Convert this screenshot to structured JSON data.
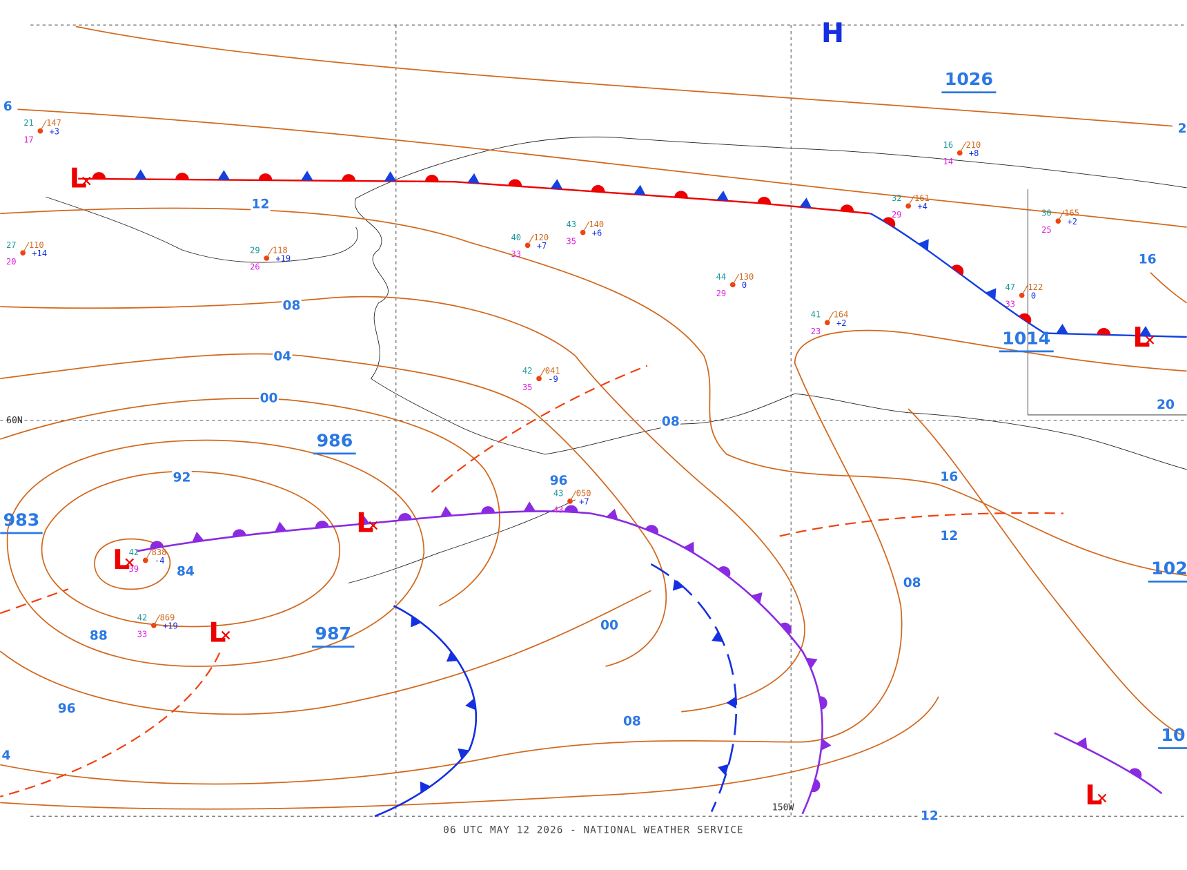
{
  "footer": "06 UTC MAY 12 2026 - NATIONAL WEATHER SERVICE",
  "grid_labels": [
    "60N",
    "150W"
  ],
  "highs": [
    "H"
  ],
  "lows": [
    "L",
    "L",
    "L",
    "L",
    "L",
    "L"
  ],
  "center_pressures": [
    "1026",
    "1014",
    "986",
    "983",
    "987",
    "102",
    "10"
  ],
  "isobar_labels": [
    "6",
    "12",
    "08",
    "04",
    "00",
    "92",
    "84",
    "88",
    "96",
    "4",
    "96",
    "08",
    "00",
    "08",
    "16",
    "12",
    "08",
    "16",
    "20",
    "2",
    "12"
  ],
  "stations": [
    {
      "temp": "21",
      "pressure": "147",
      "dewpoint": "17",
      "tendency": "+3"
    },
    {
      "temp": "27",
      "pressure": "110",
      "dewpoint": "20",
      "tendency": "+14"
    },
    {
      "temp": "29",
      "pressure": "118",
      "dewpoint": "26",
      "tendency": "+19"
    },
    {
      "temp": "43",
      "pressure": "140",
      "dewpoint": "35",
      "tendency": "+6"
    },
    {
      "temp": "40",
      "pressure": "120",
      "dewpoint": "33",
      "tendency": "+7"
    },
    {
      "temp": "32",
      "pressure": "161",
      "dewpoint": "29",
      "tendency": "+4"
    },
    {
      "temp": "16",
      "pressure": "210",
      "dewpoint": "14",
      "tendency": "+8"
    },
    {
      "temp": "42",
      "pressure": "041",
      "dewpoint": "35",
      "tendency": "-9"
    },
    {
      "temp": "30",
      "pressure": "165",
      "dewpoint": "25",
      "tendency": "+2"
    },
    {
      "temp": "47",
      "pressure": "122",
      "dewpoint": "33",
      "tendency": "0"
    },
    {
      "temp": "42",
      "pressure": "838",
      "dewpoint": "39",
      "tendency": "-4"
    },
    {
      "temp": "42",
      "pressure": "869",
      "dewpoint": "33",
      "tendency": "+19"
    },
    {
      "temp": "43",
      "pressure": "050",
      "dewpoint": "43",
      "tendency": "+7"
    },
    {
      "temp": "41",
      "pressure": "164",
      "dewpoint": "23",
      "tendency": "+2"
    },
    {
      "temp": "44",
      "pressure": "130",
      "dewpoint": "29",
      "tendency": "0"
    }
  ]
}
